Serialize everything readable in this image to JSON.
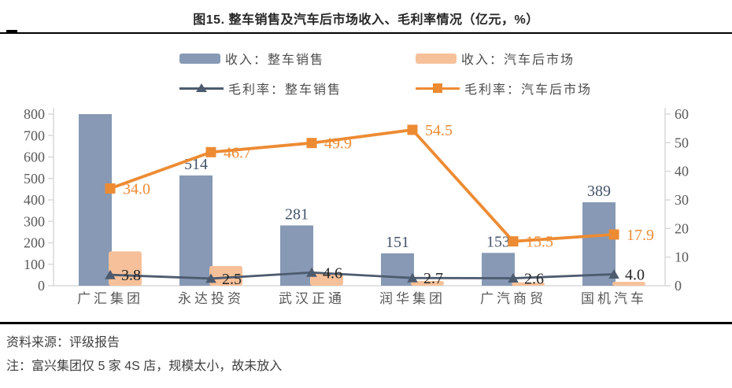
{
  "title": "图15. 整车销售及汽车后市场收入、毛利率情况（亿元，%）",
  "legend": {
    "items": [
      {
        "label": "收入：整车销售"
      },
      {
        "label": "收入：汽车后市场"
      },
      {
        "label": "毛利率：整车销售"
      },
      {
        "label": "毛利率：汽车后市场"
      }
    ]
  },
  "chart_data": {
    "type": "combo bar+line, dual axis",
    "categories": [
      "广汇集团",
      "永达投资",
      "武汉正通",
      "润华集团",
      "广汽商贸",
      "国机汽车"
    ],
    "left_axis": {
      "min": 0,
      "max": 800,
      "step": 100
    },
    "right_axis": {
      "min": 0,
      "max": 60,
      "step": 10
    },
    "series": [
      {
        "name": "收入：整车销售",
        "type": "bar",
        "axis": "left",
        "color": "#8799B4",
        "values": [
          800,
          514,
          281,
          151,
          153,
          389
        ],
        "value_labels": [
          "",
          "514",
          "281",
          "151",
          "153",
          "389"
        ],
        "label_color": "#44546A"
      },
      {
        "name": "收入：汽车后市场",
        "type": "bar",
        "axis": "left",
        "color": "#F6C19A",
        "values": [
          160,
          92,
          58,
          22,
          15,
          18
        ],
        "value_labels": [
          "",
          "",
          "",
          "",
          "",
          ""
        ],
        "label_color": "#F6C19A"
      },
      {
        "name": "毛利率：整车销售",
        "type": "line",
        "marker": "triangle",
        "axis": "right",
        "color": "#4D5B6F",
        "values": [
          3.8,
          2.5,
          4.6,
          2.7,
          2.6,
          4.0
        ],
        "value_labels": [
          "3.8",
          "2.5",
          "4.6",
          "2.7",
          "2.6",
          "4.0"
        ],
        "label_color": "#262626"
      },
      {
        "name": "毛利率：汽车后市场",
        "type": "line",
        "marker": "square",
        "axis": "right",
        "color": "#ED8B33",
        "values": [
          34.0,
          46.7,
          49.9,
          54.5,
          15.5,
          17.9
        ],
        "value_labels": [
          "34.0",
          "46.7",
          "49.9",
          "54.5",
          "15.5",
          "17.9"
        ],
        "label_color": "#ED8B33"
      }
    ],
    "grid": "off",
    "legend_position": "top",
    "axis_line_color": "#D9D9D9",
    "tick_label_color": "#595959",
    "category_label_color": "#595959"
  },
  "footer": {
    "source": "资料来源：评级报告",
    "note": "注：富兴集团仅 5 家 4S 店，规模太小，故未放入"
  }
}
